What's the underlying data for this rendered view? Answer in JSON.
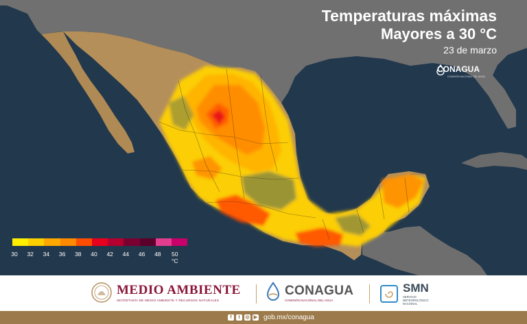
{
  "title": {
    "line1": "Temperaturas máximas",
    "line2": "Mayores a 30 °C",
    "date": "23 de marzo"
  },
  "map_logo": {
    "name": "CONAGUA",
    "subtitle": "COMISIÓN NACIONAL DEL AGUA"
  },
  "legend": {
    "ticks": [
      "30",
      "32",
      "34",
      "36",
      "38",
      "40",
      "42",
      "44",
      "46",
      "48",
      "50 °C"
    ],
    "colors": [
      "#ffee00",
      "#ffd000",
      "#ffa800",
      "#ff8a00",
      "#ff4d00",
      "#e8001f",
      "#b5002f",
      "#7a0030",
      "#5a002a",
      "#e23d8f",
      "#c8006a"
    ]
  },
  "footer": {
    "medio_ambiente": {
      "name": "MEDIO AMBIENTE",
      "subtitle": "SECRETARÍA DE MEDIO AMBIENTE Y RECURSOS NATURALES"
    },
    "conagua": {
      "name": "CONAGUA",
      "subtitle": "COMISIÓN NACIONAL DEL AGUA"
    },
    "smn": {
      "name": "SMN",
      "subtitle_1": "SERVICIO",
      "subtitle_2": "METEOROLÓGICO",
      "subtitle_3": "NACIONAL"
    }
  },
  "bottom_bar": {
    "social_icons": [
      "facebook-icon",
      "twitter-icon",
      "instagram-icon",
      "youtube-icon"
    ],
    "url": "gob.mx/conagua"
  },
  "colors": {
    "ocean": "#1f3346",
    "land_usa": "#6f6f6f",
    "land_mexico": "#b58f5a",
    "brand_guinda": "#8a1538",
    "bottom_bar": "#9c7a4b"
  }
}
